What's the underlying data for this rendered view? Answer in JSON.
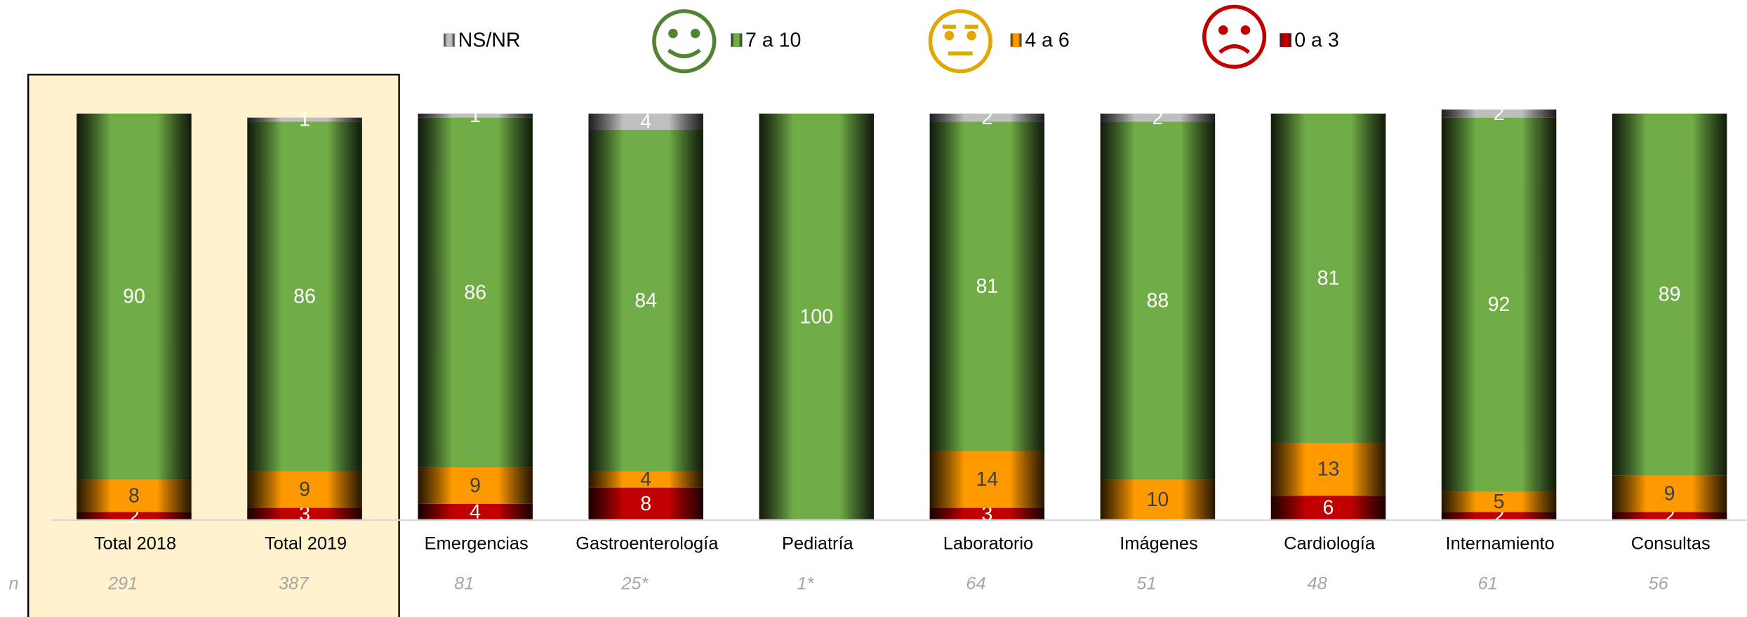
{
  "chart_data": {
    "type": "stacked_bar",
    "categories": [
      "Total 2018",
      "Total 2019",
      "Emergencias",
      "Gastroenterología",
      "Pediatría",
      "Laboratorio",
      "Imágenes",
      "Cardiología",
      "Internamiento",
      "Consultas"
    ],
    "series": [
      {
        "name": "0 a 3",
        "color": "#c00000",
        "label_color": "#ffffff",
        "values": [
          2,
          3,
          4,
          8,
          0,
          3,
          0,
          6,
          2,
          2
        ]
      },
      {
        "name": "4 a 6",
        "color": "#ff9900",
        "label_color": "#404040",
        "values": [
          8,
          9,
          9,
          4,
          0,
          14,
          10,
          13,
          5,
          9
        ]
      },
      {
        "name": "7 a 10",
        "color": "#70ad47",
        "label_color": "#ffffff",
        "values": [
          90,
          86,
          86,
          84,
          100,
          81,
          88,
          81,
          92,
          89
        ]
      },
      {
        "name": "NS/NR",
        "color": "#bfbfbf",
        "label_color": "#ffffff",
        "values": [
          0,
          1,
          1,
          4,
          0,
          2,
          2,
          0,
          2,
          0
        ]
      }
    ],
    "ylim": [
      0,
      100
    ],
    "n": {
      "label": "n",
      "values": [
        291,
        387,
        81,
        "25*",
        "1*",
        64,
        51,
        48,
        61,
        56
      ]
    }
  }
}
